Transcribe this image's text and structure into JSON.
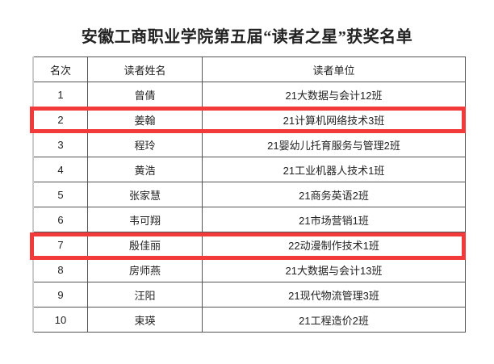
{
  "title": "安徽工商职业学院第五届“读者之星”获奖名单",
  "table": {
    "headers": [
      "名次",
      "读者姓名",
      "读者单位"
    ],
    "rows": [
      [
        "1",
        "曾倩",
        "21大数据与会计12班"
      ],
      [
        "2",
        "姜翰",
        "21计算机网络技术3班"
      ],
      [
        "3",
        "程玲",
        "21婴幼儿托育服务与管理2班"
      ],
      [
        "4",
        "黄浩",
        "21工业机器人技术1班"
      ],
      [
        "5",
        "张家慧",
        "21商务英语2班"
      ],
      [
        "6",
        "韦可翔",
        "21市场营销1班"
      ],
      [
        "7",
        "殷佳丽",
        "22动漫制作技术1班"
      ],
      [
        "8",
        "房师燕",
        "21大数据与会计13班"
      ],
      [
        "9",
        "汪阳",
        "21现代物流管理3班"
      ],
      [
        "10",
        "束瑛",
        "21工程造价2班"
      ]
    ]
  },
  "highlight_color": "#f23a3a",
  "highlighted_ranks": [
    "2",
    "7"
  ]
}
